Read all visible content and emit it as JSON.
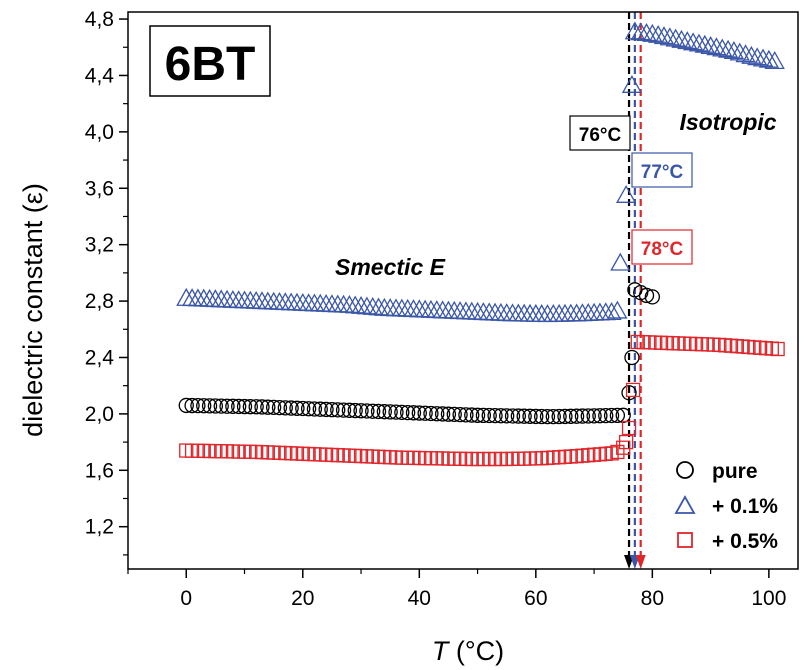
{
  "chart_data": {
    "type": "scatter",
    "title": "6BT",
    "xlabel_italic": "T",
    "xlabel_rest": " (°C)",
    "ylabel": "dielectric constant (ε)",
    "xlim": [
      -10,
      105
    ],
    "ylim": [
      0.9,
      4.85
    ],
    "x_ticks": [
      0,
      20,
      40,
      60,
      80,
      100
    ],
    "x_tick_labels": [
      "0",
      "20",
      "40",
      "60",
      "80",
      "100"
    ],
    "y_ticks": [
      1.2,
      1.6,
      2.0,
      2.4,
      2.8,
      3.2,
      3.6,
      4.0,
      4.4,
      4.8
    ],
    "y_tick_labels": [
      "1,2",
      "1,6",
      "2,0",
      "2,4",
      "2,8",
      "3,2",
      "3,6",
      "4,0",
      "4,4",
      "4,8"
    ],
    "phase_labels": [
      "Smectic E",
      "Isotropic"
    ],
    "transitions": [
      {
        "x": 76,
        "label": "76°C",
        "color": "#000000"
      },
      {
        "x": 77,
        "label": "77°C",
        "color": "#3a56a8"
      },
      {
        "x": 78,
        "label": "78°C",
        "color": "#e0262b"
      }
    ],
    "legend_position": "bottom-right",
    "series": [
      {
        "name": "pure",
        "marker": "circle",
        "color": "#000000",
        "segments": [
          {
            "x_start": 0,
            "x_end": 75,
            "step": 1,
            "y": [
              2.06,
              2.055,
              2.05,
              2.04,
              2.03,
              2.02,
              2.01,
              2.0,
              1.99,
              1.985,
              1.98,
              1.985,
              1.99
            ]
          },
          {
            "points": [
              [
                76,
                2.15
              ],
              [
                76.5,
                2.4
              ],
              [
                77,
                2.88
              ],
              [
                78,
                2.86
              ],
              [
                79,
                2.84
              ],
              [
                80,
                2.83
              ]
            ]
          }
        ]
      },
      {
        "name": "+ 0.1%",
        "marker": "triangle",
        "color": "#3a56a8",
        "segments": [
          {
            "x_start": 0,
            "x_end": 73,
            "step": 1,
            "y": [
              2.82,
              2.81,
              2.8,
              2.79,
              2.78,
              2.77,
              2.75,
              2.74,
              2.73,
              2.72,
              2.71,
              2.705,
              2.71,
              2.72
            ]
          },
          {
            "points": [
              [
                74,
                2.73
              ],
              [
                74.5,
                3.07
              ],
              [
                75.5,
                3.55
              ],
              [
                76.5,
                4.33
              ]
            ]
          },
          {
            "x_start": 77,
            "x_end": 101,
            "step": 1,
            "y": [
              4.71,
              4.69,
              4.66,
              4.63,
              4.6,
              4.57,
              4.53,
              4.5
            ]
          }
        ]
      },
      {
        "name": "+ 0.5%",
        "marker": "square",
        "color": "#e0262b",
        "segments": [
          {
            "x_start": 0,
            "x_end": 73,
            "step": 1,
            "y": [
              1.74,
              1.735,
              1.73,
              1.72,
              1.71,
              1.7,
              1.69,
              1.685,
              1.68,
              1.68,
              1.685,
              1.7,
              1.72
            ]
          },
          {
            "points": [
              [
                74,
                1.73
              ],
              [
                75,
                1.76
              ],
              [
                75.5,
                1.8
              ],
              [
                76,
                1.9
              ],
              [
                76.7,
                2.17
              ]
            ]
          },
          {
            "x_start": 77.5,
            "x_end": 101,
            "step": 1,
            "y": [
              2.51,
              2.505,
              2.5,
              2.495,
              2.49,
              2.48,
              2.47,
              2.46
            ]
          }
        ]
      }
    ]
  }
}
